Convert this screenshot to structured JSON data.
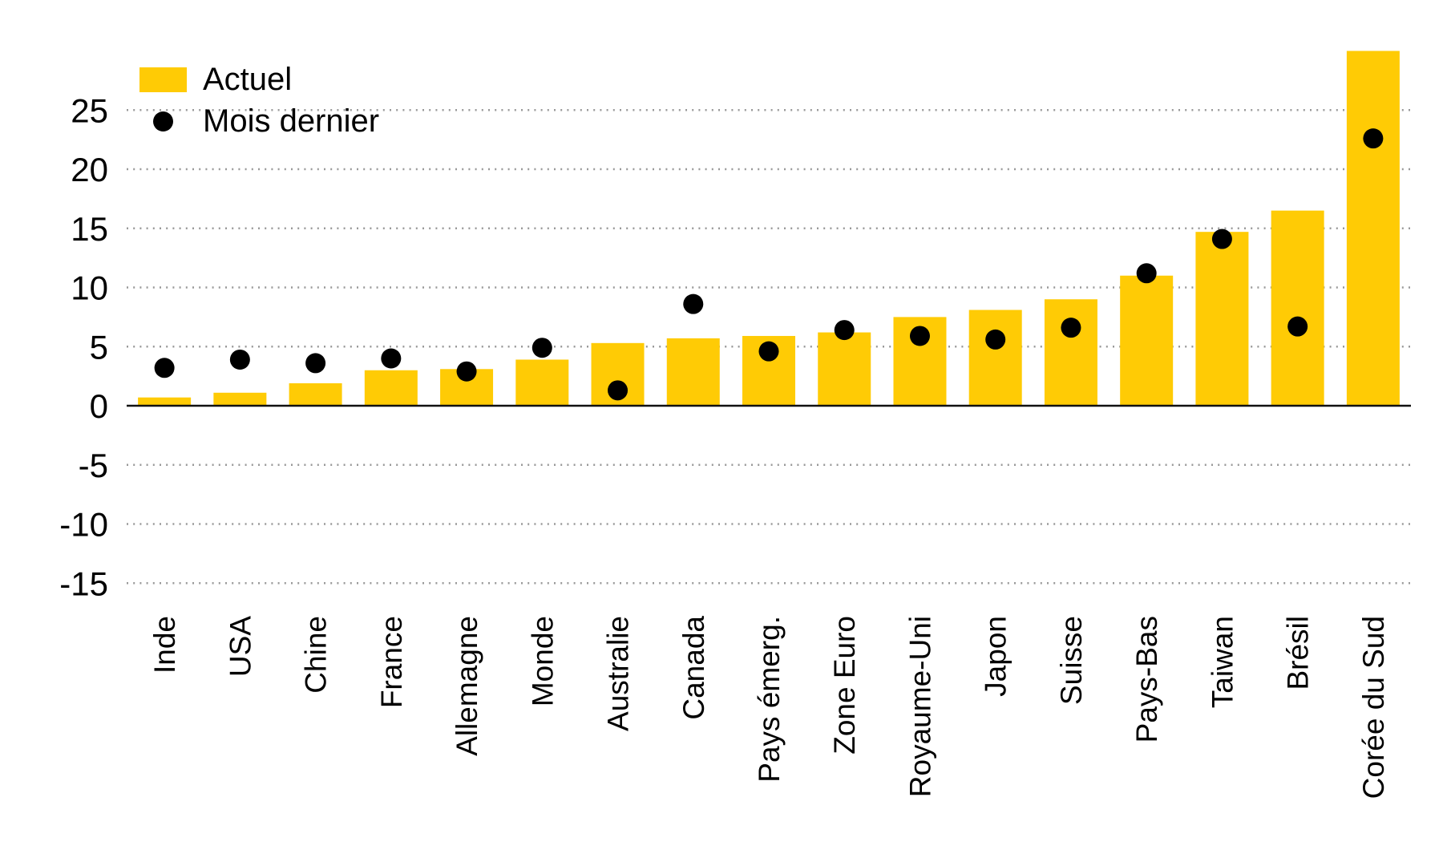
{
  "page": {
    "background_color": "#ffffff"
  },
  "chart_data": {
    "type": "bar",
    "title": "",
    "xlabel": "",
    "ylabel": "",
    "categories": [
      "Inde",
      "USA",
      "Chine",
      "France",
      "Allemagne",
      "Monde",
      "Australie",
      "Canada",
      "Pays émerg.",
      "Zone Euro",
      "Royaume-Uni",
      "Japon",
      "Suisse",
      "Pays-Bas",
      "Taiwan",
      "Brésil",
      "Corée du Sud"
    ],
    "series": [
      {
        "name": "Actuel",
        "type": "bar",
        "color": "#FFCB05",
        "values": [
          0.7,
          1.1,
          1.9,
          3.0,
          3.1,
          3.9,
          5.3,
          5.7,
          5.9,
          6.2,
          7.5,
          8.1,
          9.0,
          11.0,
          14.7,
          16.5,
          30.0
        ]
      },
      {
        "name": "Mois dernier",
        "type": "scatter",
        "color": "#000000",
        "values": [
          3.2,
          3.9,
          3.6,
          4.0,
          2.9,
          4.9,
          1.3,
          8.6,
          4.6,
          6.4,
          5.9,
          5.6,
          6.6,
          11.2,
          14.1,
          6.7,
          22.6
        ]
      }
    ],
    "yticks": [
      25,
      20,
      15,
      10,
      5,
      0,
      -5,
      -10,
      -15
    ],
    "ylim": [
      -17.8,
      31.1
    ],
    "grid": "horizontal-dotted",
    "gridline_color": "#999999",
    "zero_line_color": "#111111",
    "legend_position": "top-left",
    "x_tick_label_rotation": -90
  }
}
